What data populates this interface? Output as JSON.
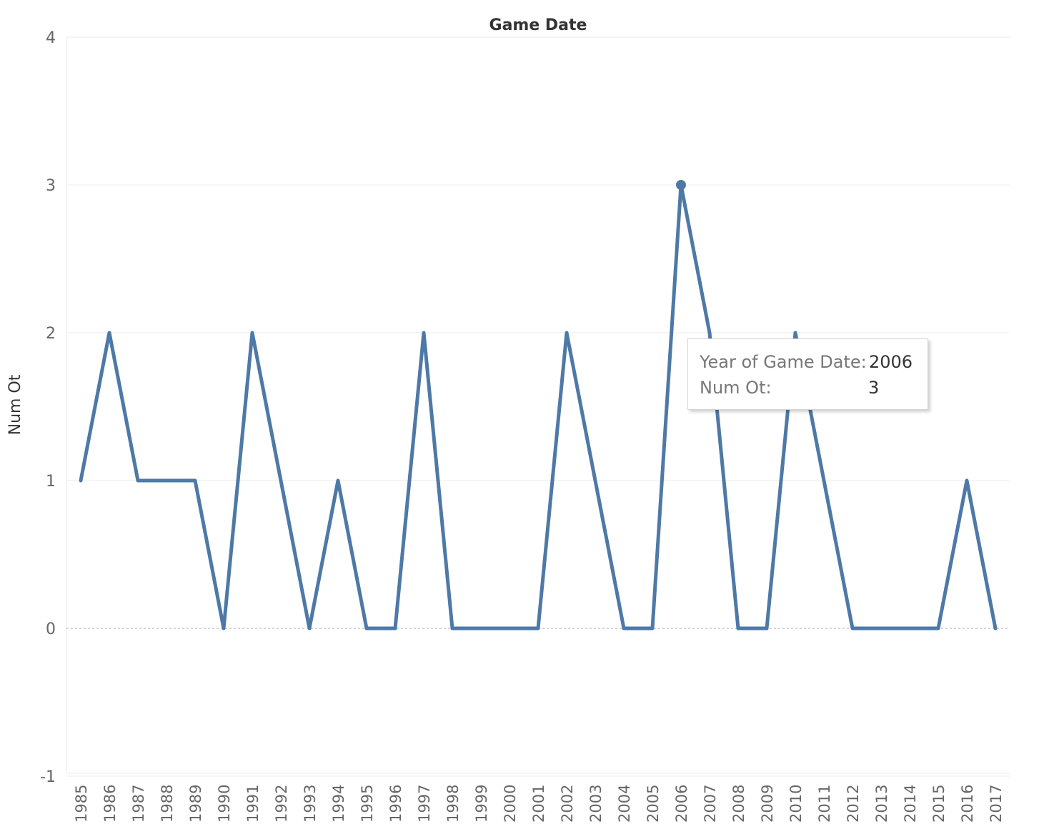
{
  "chart_data": {
    "type": "line",
    "title": "Game Date",
    "xlabel": "",
    "ylabel": "Num Ot",
    "ylim": [
      -1,
      4
    ],
    "yticks": [
      -1,
      0,
      1,
      2,
      3,
      4
    ],
    "grid": true,
    "legend": "none",
    "categories": [
      "1985",
      "1986",
      "1987",
      "1988",
      "1989",
      "1990",
      "1991",
      "1992",
      "1993",
      "1994",
      "1995",
      "1996",
      "1997",
      "1998",
      "1999",
      "2000",
      "2001",
      "2002",
      "2003",
      "2004",
      "2005",
      "2006",
      "2007",
      "2008",
      "2009",
      "2010",
      "2011",
      "2012",
      "2013",
      "2014",
      "2015",
      "2016",
      "2017"
    ],
    "series": [
      {
        "values": [
          1,
          2,
          1,
          1,
          1,
          0,
          2,
          1,
          0,
          1,
          0,
          0,
          2,
          0,
          0,
          0,
          0,
          2,
          1,
          0,
          0,
          3,
          2,
          0,
          0,
          2,
          1,
          0,
          0,
          0,
          0,
          1,
          0
        ],
        "color": "#4e79a7"
      }
    ],
    "highlight": {
      "category": "2006",
      "value": 3
    }
  },
  "tooltip": {
    "year_label": "Year of Game Date:",
    "year_value": "2006",
    "num_label": "Num Ot:",
    "num_value": "3"
  },
  "colors": {
    "line": "#4e79a7",
    "grid": "#ebebeb",
    "zero_line": "#aaaaaa"
  }
}
